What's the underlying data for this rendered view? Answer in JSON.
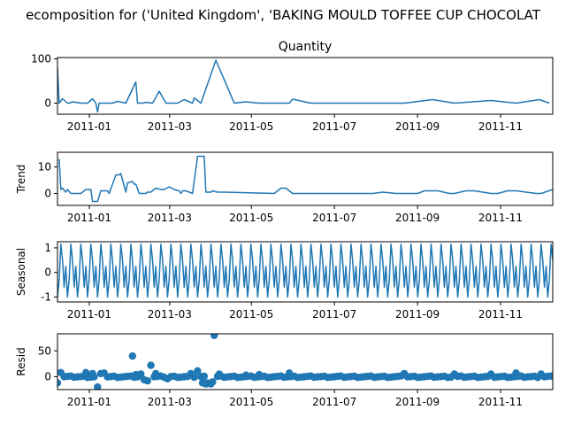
{
  "chart_data": [
    {
      "type": "line",
      "figure_title": "ecomposition for ('United Kingdom', 'BAKING MOULD TOFFEE CUP CHOCOLAT",
      "title": "Quantity",
      "ylabel": "",
      "ylim": [
        -25,
        103
      ],
      "yticks": [
        0,
        100
      ],
      "color": "#1f77b4",
      "x": [
        0,
        1,
        3,
        6,
        7,
        9,
        14,
        18,
        21,
        23,
        24,
        25,
        28,
        33,
        36,
        41,
        47,
        48,
        51,
        53,
        57,
        61,
        65,
        66,
        67,
        70,
        72,
        76,
        81,
        82,
        86,
        95,
        106,
        113,
        121,
        139,
        141,
        152,
        166,
        183,
        208,
        225,
        238,
        260,
        275,
        289,
        295
      ],
      "y": [
        80,
        0,
        10,
        0,
        0,
        3,
        0,
        0,
        10,
        0,
        -20,
        0,
        0,
        0,
        4,
        0,
        48,
        0,
        0,
        2,
        0,
        27,
        0,
        0,
        0,
        0,
        0,
        8,
        0,
        12,
        0,
        97,
        0,
        3,
        0,
        0,
        9,
        0,
        0,
        0,
        0,
        8,
        0,
        6,
        0,
        8,
        0
      ]
    },
    {
      "type": "line",
      "title": "",
      "ylabel": "Trend",
      "ylim": [
        -4.5,
        15.5
      ],
      "yticks": [
        0,
        10
      ],
      "color": "#1f77b4",
      "x": [
        1,
        2,
        3,
        5,
        6,
        8,
        14,
        17,
        18,
        20,
        21,
        23,
        24,
        26,
        27,
        30,
        31,
        35,
        36,
        37,
        38,
        41,
        42,
        45,
        46,
        47,
        49,
        50,
        53,
        54,
        56,
        59,
        62,
        64,
        67,
        70,
        73,
        74,
        75,
        77,
        79,
        81,
        84,
        88,
        89,
        92,
        93,
        96,
        100,
        130,
        134,
        137,
        141,
        147,
        189,
        195,
        203,
        216,
        220,
        228,
        235,
        238,
        245,
        250,
        260,
        264,
        270,
        275,
        287,
        290,
        297
      ],
      "y": [
        13,
        1.5,
        2,
        0.5,
        1.5,
        0,
        0,
        1.5,
        1.5,
        1.5,
        -3,
        -3,
        -3,
        1,
        1,
        1,
        0,
        7,
        7,
        7,
        7.5,
        0.5,
        4,
        4.5,
        3.5,
        3.5,
        0,
        0,
        0,
        0.5,
        0.5,
        2,
        1.5,
        1.5,
        2.5,
        1.5,
        1,
        0,
        1,
        1,
        0.5,
        0,
        14,
        14,
        0.5,
        0.5,
        1,
        0.5,
        0.5,
        0,
        2,
        2,
        0,
        0,
        0,
        0.5,
        0,
        0,
        1,
        1,
        0,
        0,
        1,
        1,
        0,
        0,
        1,
        1,
        0,
        0,
        1.5
      ]
    },
    {
      "type": "line",
      "title": "",
      "ylabel": "Seasonal",
      "ylim": [
        -1.2,
        1.25
      ],
      "yticks": [
        -1,
        0,
        1
      ],
      "color": "#1f77b4",
      "period": 6,
      "pattern": [
        -1,
        -0.3,
        1.15,
        0.5,
        -0.6,
        0.25
      ],
      "x_range": [
        0,
        297
      ]
    },
    {
      "type": "scatter",
      "title": "",
      "ylabel": "Resid",
      "ylim": [
        -25,
        83
      ],
      "yticks": [
        0,
        50
      ],
      "color": "#1f77b4",
      "x_range": [
        0,
        297
      ],
      "baseline_step": 2,
      "points": [
        {
          "x": 0,
          "y": -12
        },
        {
          "x": 2,
          "y": 8
        },
        {
          "x": 17,
          "y": 8
        },
        {
          "x": 21,
          "y": 6
        },
        {
          "x": 24,
          "y": -20
        },
        {
          "x": 26,
          "y": 6
        },
        {
          "x": 28,
          "y": 7
        },
        {
          "x": 45,
          "y": 40
        },
        {
          "x": 47,
          "y": 4
        },
        {
          "x": 50,
          "y": 5
        },
        {
          "x": 52,
          "y": -6
        },
        {
          "x": 54,
          "y": -8
        },
        {
          "x": 56,
          "y": 22
        },
        {
          "x": 59,
          "y": 6
        },
        {
          "x": 66,
          "y": -4
        },
        {
          "x": 80,
          "y": 6
        },
        {
          "x": 84,
          "y": 11
        },
        {
          "x": 87,
          "y": -12
        },
        {
          "x": 89,
          "y": -14
        },
        {
          "x": 90,
          "y": -12
        },
        {
          "x": 92,
          "y": -14
        },
        {
          "x": 93,
          "y": -10
        },
        {
          "x": 94,
          "y": 80
        },
        {
          "x": 97,
          "y": 5
        },
        {
          "x": 113,
          "y": 3
        },
        {
          "x": 121,
          "y": 4
        },
        {
          "x": 139,
          "y": 7
        },
        {
          "x": 208,
          "y": 6
        },
        {
          "x": 238,
          "y": 5
        },
        {
          "x": 260,
          "y": 5
        },
        {
          "x": 275,
          "y": 7
        },
        {
          "x": 290,
          "y": 5
        }
      ]
    }
  ],
  "x_axis": {
    "x_range": [
      0,
      297
    ],
    "ticks": [
      {
        "value": 22,
        "label": "2011-01"
      },
      {
        "value": 81,
        "label": "2011-03"
      },
      {
        "value": 141,
        "label": "2011-05"
      },
      {
        "value": 202,
        "label": "2011-07"
      },
      {
        "value": 263,
        "label": "2011-09"
      },
      {
        "value": 324,
        "label": "2011-11"
      }
    ]
  }
}
